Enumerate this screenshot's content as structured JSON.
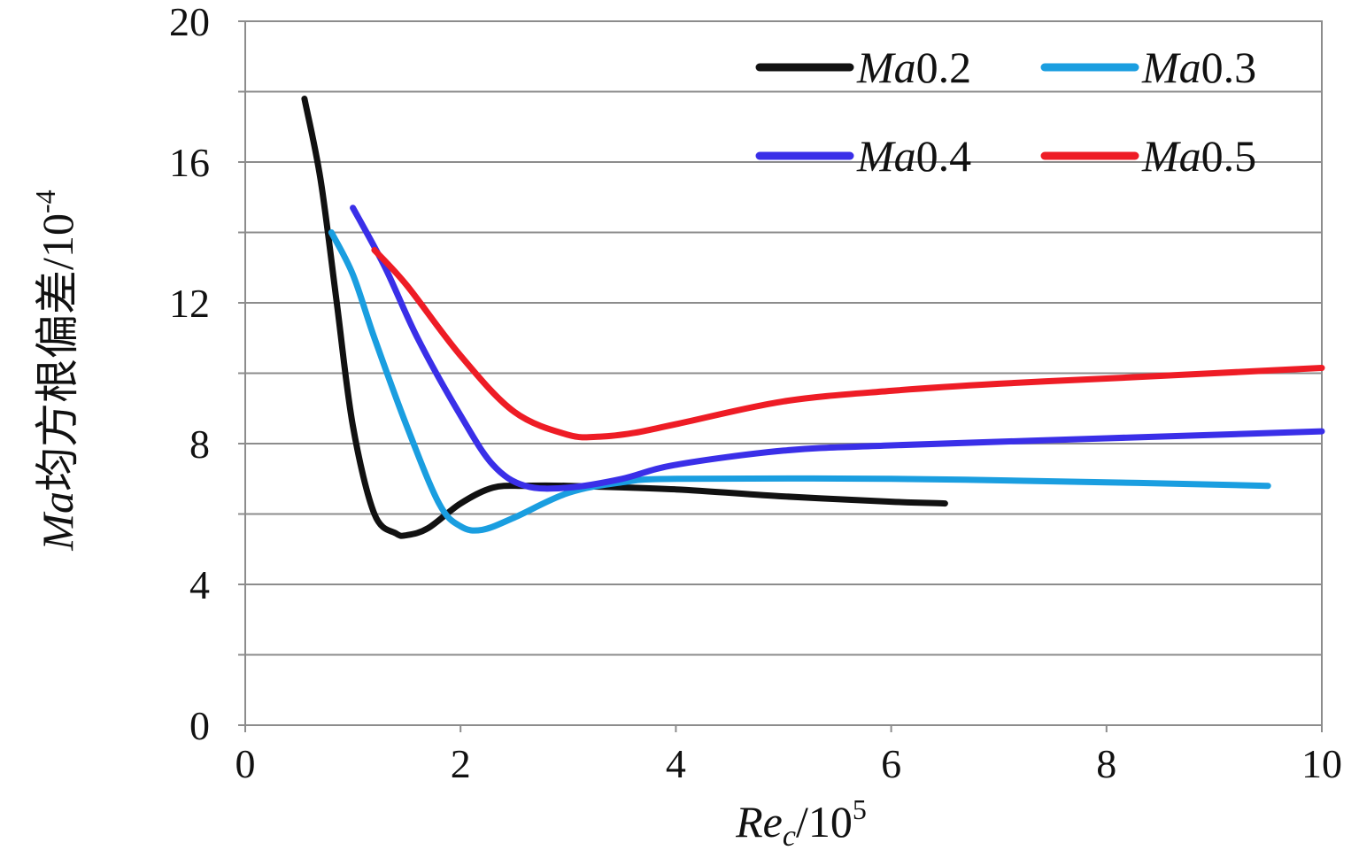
{
  "chart_data": {
    "type": "line",
    "title": "",
    "xlabel": "Re_c/10^5",
    "xlabel_parts": {
      "var": "Re",
      "sub": "c",
      "slash_base": "/10",
      "exp": "5"
    },
    "ylabel": "Ma均方根偏差/10^-4",
    "ylabel_parts": {
      "var": "Ma",
      "text": "均方根偏差/10",
      "exp": "-4"
    },
    "xlim": [
      0,
      10
    ],
    "ylim": [
      0,
      20
    ],
    "x_ticks": [
      0,
      2,
      4,
      6,
      8,
      10
    ],
    "y_ticks": [
      0,
      4,
      8,
      12,
      16,
      20
    ],
    "x_tick_labels": [
      "0",
      "2",
      "4",
      "6",
      "8",
      "10"
    ],
    "y_tick_labels": [
      "0",
      "4",
      "8",
      "12",
      "16",
      "20"
    ],
    "y_grid_step": 2,
    "grid": true,
    "legend_position": "top-right",
    "series": [
      {
        "name": "Ma0.2",
        "label_var": "Ma",
        "label_num": "0.2",
        "color": "#111111",
        "x": [
          0.55,
          0.7,
          0.85,
          1.0,
          1.2,
          1.4,
          1.5,
          1.7,
          2.0,
          2.3,
          2.6,
          3.0,
          4.0,
          5.0,
          6.0,
          6.5
        ],
        "y": [
          17.8,
          15.5,
          12.0,
          8.5,
          6.0,
          5.45,
          5.4,
          5.6,
          6.3,
          6.75,
          6.8,
          6.8,
          6.7,
          6.5,
          6.35,
          6.3
        ]
      },
      {
        "name": "Ma0.3",
        "label_var": "Ma",
        "label_num": "0.3",
        "color": "#1a9ee0",
        "x": [
          0.8,
          1.0,
          1.2,
          1.5,
          1.8,
          2.0,
          2.2,
          2.5,
          3.0,
          3.5,
          4.0,
          6.0,
          8.0,
          9.5
        ],
        "y": [
          14.0,
          12.8,
          11.0,
          8.5,
          6.3,
          5.65,
          5.55,
          5.9,
          6.6,
          6.9,
          7.0,
          7.0,
          6.9,
          6.8
        ]
      },
      {
        "name": "Ma0.4",
        "label_var": "Ma",
        "label_num": "0.4",
        "color": "#3a2fe8",
        "x": [
          1.0,
          1.3,
          1.6,
          2.0,
          2.3,
          2.6,
          3.0,
          3.5,
          4.0,
          5.0,
          6.0,
          8.0,
          10.0
        ],
        "y": [
          14.7,
          13.0,
          11.0,
          8.8,
          7.4,
          6.8,
          6.75,
          7.0,
          7.4,
          7.8,
          7.95,
          8.15,
          8.35
        ]
      },
      {
        "name": "Ma0.5",
        "label_var": "Ma",
        "label_num": "0.5",
        "color": "#ee1c25",
        "x": [
          1.2,
          1.5,
          2.0,
          2.5,
          3.0,
          3.3,
          3.6,
          4.0,
          5.0,
          6.0,
          7.0,
          8.0,
          9.0,
          10.0
        ],
        "y": [
          13.5,
          12.5,
          10.5,
          8.9,
          8.25,
          8.2,
          8.3,
          8.55,
          9.2,
          9.5,
          9.7,
          9.85,
          10.0,
          10.15
        ]
      }
    ]
  }
}
